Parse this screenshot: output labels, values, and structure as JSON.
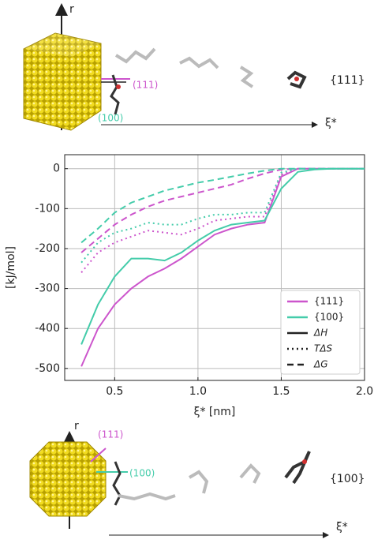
{
  "chart_data": {
    "type": "line",
    "xlabel": "ξ* [nm]",
    "ylabel": "[kJ/mol]",
    "x": [
      0.3,
      0.4,
      0.5,
      0.6,
      0.7,
      0.8,
      0.9,
      1.0,
      1.1,
      1.2,
      1.3,
      1.4,
      1.5,
      1.6,
      1.7,
      1.8,
      1.9,
      2.0
    ],
    "styles": [
      {
        "name": "ΔH",
        "dash": "solid"
      },
      {
        "name": "TΔS",
        "dash": "dotted"
      },
      {
        "name": "ΔG",
        "dash": "dashed"
      }
    ],
    "series": [
      {
        "name": "{111}",
        "color": "#cc55cc",
        "components": [
          [
            -495,
            -400,
            -340,
            -300,
            -270,
            -250,
            -225,
            -195,
            -165,
            -150,
            -140,
            -135,
            -20,
            0,
            0,
            0,
            0,
            0
          ],
          [
            -260,
            -210,
            -185,
            -170,
            -155,
            -160,
            -165,
            -150,
            -130,
            -125,
            -120,
            -120,
            -15,
            0,
            0,
            0,
            0,
            0
          ],
          [
            -210,
            -175,
            -140,
            -115,
            -95,
            -80,
            -70,
            -60,
            -50,
            -40,
            -25,
            -12,
            -2,
            0,
            0,
            0,
            0,
            0
          ]
        ]
      },
      {
        "name": "{100}",
        "color": "#44ccaa",
        "components": [
          [
            -440,
            -340,
            -270,
            -225,
            -225,
            -230,
            -210,
            -180,
            -155,
            -140,
            -135,
            -130,
            -50,
            -8,
            -2,
            0,
            0,
            0
          ],
          [
            -235,
            -185,
            -160,
            -150,
            -135,
            -140,
            -140,
            -125,
            -115,
            -115,
            -110,
            -110,
            -10,
            0,
            0,
            0,
            0,
            0
          ],
          [
            -185,
            -150,
            -110,
            -85,
            -70,
            -55,
            -45,
            -35,
            -28,
            -20,
            -12,
            -5,
            0,
            0,
            0,
            0,
            0,
            0
          ]
        ]
      }
    ],
    "xlim": [
      0.2,
      2.0
    ],
    "ylim": [
      -530,
      35
    ],
    "xticks": [
      0.5,
      {
        "value": 1.0,
        "label": "1.0"
      },
      1.5,
      {
        "value": 2.0,
        "label": "2.0"
      }
    ],
    "yticks": [
      0,
      -100,
      -200,
      -300,
      -400,
      -500
    ],
    "grid": true,
    "legend": "lower right"
  },
  "top_panel": {
    "axis": "r",
    "facet": "{111}",
    "plane_a": "(111)",
    "plane_b": "(100)",
    "coordinate": "ξ*"
  },
  "bottom_panel": {
    "axis": "r",
    "facet": "{100}",
    "plane_a": "(111)",
    "plane_b": "(100)",
    "coordinate": "ξ*"
  }
}
